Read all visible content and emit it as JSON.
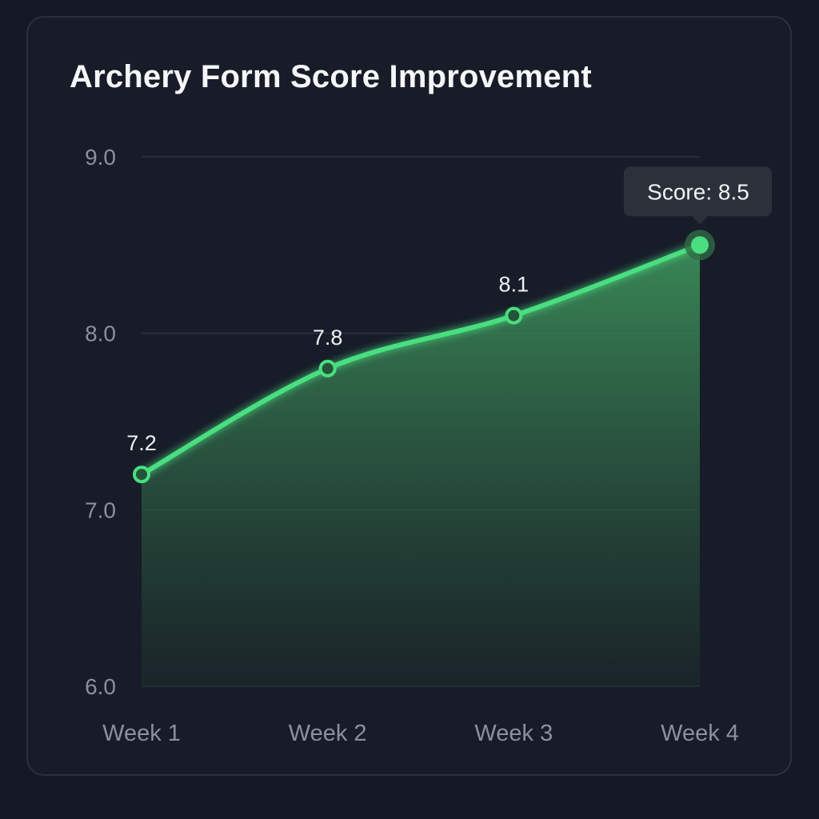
{
  "chart_data": {
    "type": "line",
    "title": "Archery Form Score Improvement",
    "categories": [
      "Week 1",
      "Week 2",
      "Week 3",
      "Week 4"
    ],
    "values": [
      7.2,
      7.8,
      8.1,
      8.5
    ],
    "data_labels": [
      "7.2",
      "7.8",
      "8.1",
      ""
    ],
    "ylim": [
      6.0,
      9.0
    ],
    "yticks": [
      6.0,
      7.0,
      8.0,
      9.0
    ],
    "ytick_labels": [
      "6.0",
      "7.0",
      "8.0",
      "9.0"
    ],
    "xlabel": "",
    "ylabel": "",
    "grid": true,
    "area_fill": true,
    "tooltip": {
      "text": "Score: 8.5",
      "index": 3
    },
    "colors": {
      "line": "#4ade80",
      "background": "#141925",
      "card": "#171c28",
      "grid": "#2c3340",
      "tooltip": "#2b303b"
    }
  }
}
